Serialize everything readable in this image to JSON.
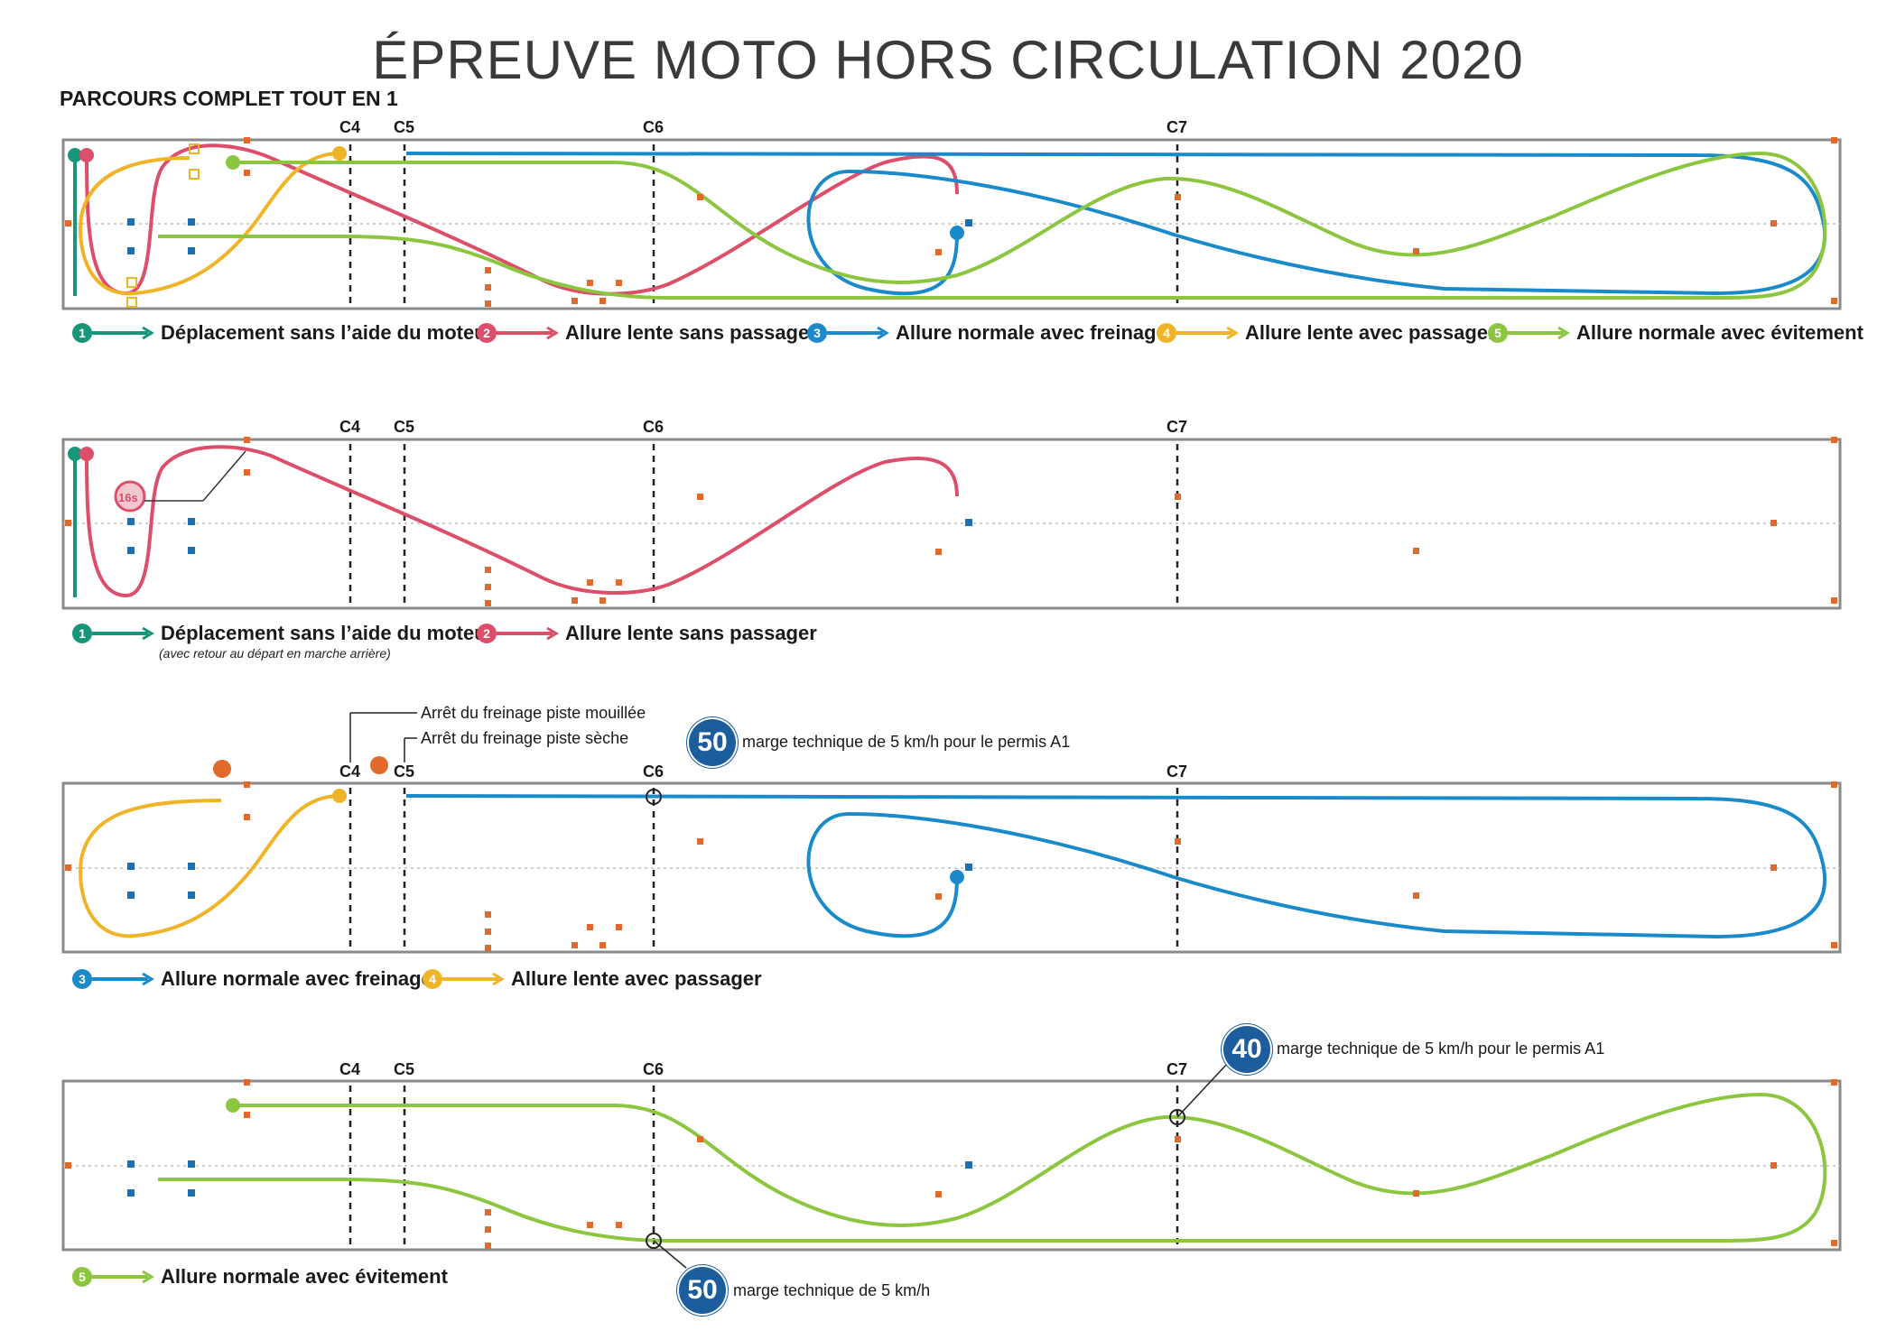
{
  "title": "ÉPREUVE MOTO HORS CIRCULATION 2020",
  "subtitle": "PARCOURS COMPLET TOUT EN 1",
  "colors": {
    "step1": "#17967a",
    "step2": "#dc4e69",
    "step3": "#1b8acb",
    "step4": "#f0b429",
    "step5": "#8cc63f",
    "badge": "#1c5d9e",
    "cone": "#e06a2a",
    "post": "#1b6fb5"
  },
  "cone_labels": [
    "C4",
    "C5",
    "C6",
    "C7"
  ],
  "legends": {
    "step1": {
      "num": "1",
      "label": "Déplacement sans l’aide du moteur"
    },
    "step2": {
      "num": "2",
      "label": "Allure lente sans passager"
    },
    "step3": {
      "num": "3",
      "label": "Allure normale avec freinage"
    },
    "step4": {
      "num": "4",
      "label": "Allure lente avec passager"
    },
    "step5": {
      "num": "5",
      "label": "Allure normale avec évitement"
    }
  },
  "panel2": {
    "note": "(avec retour au départ en marche arrière)",
    "timer": "16s"
  },
  "panel3": {
    "wet_stop": "Arrêt du freinage piste mouillée",
    "dry_stop": "Arrêt du freinage piste sèche",
    "speed": "50",
    "speed_note": "marge technique de 5 km/h pour le permis A1"
  },
  "panel4": {
    "speed_top": "40",
    "speed_top_note": "marge technique de 5 km/h pour le permis A1",
    "speed_bottom": "50",
    "speed_bottom_note": "marge technique de 5 km/h"
  }
}
